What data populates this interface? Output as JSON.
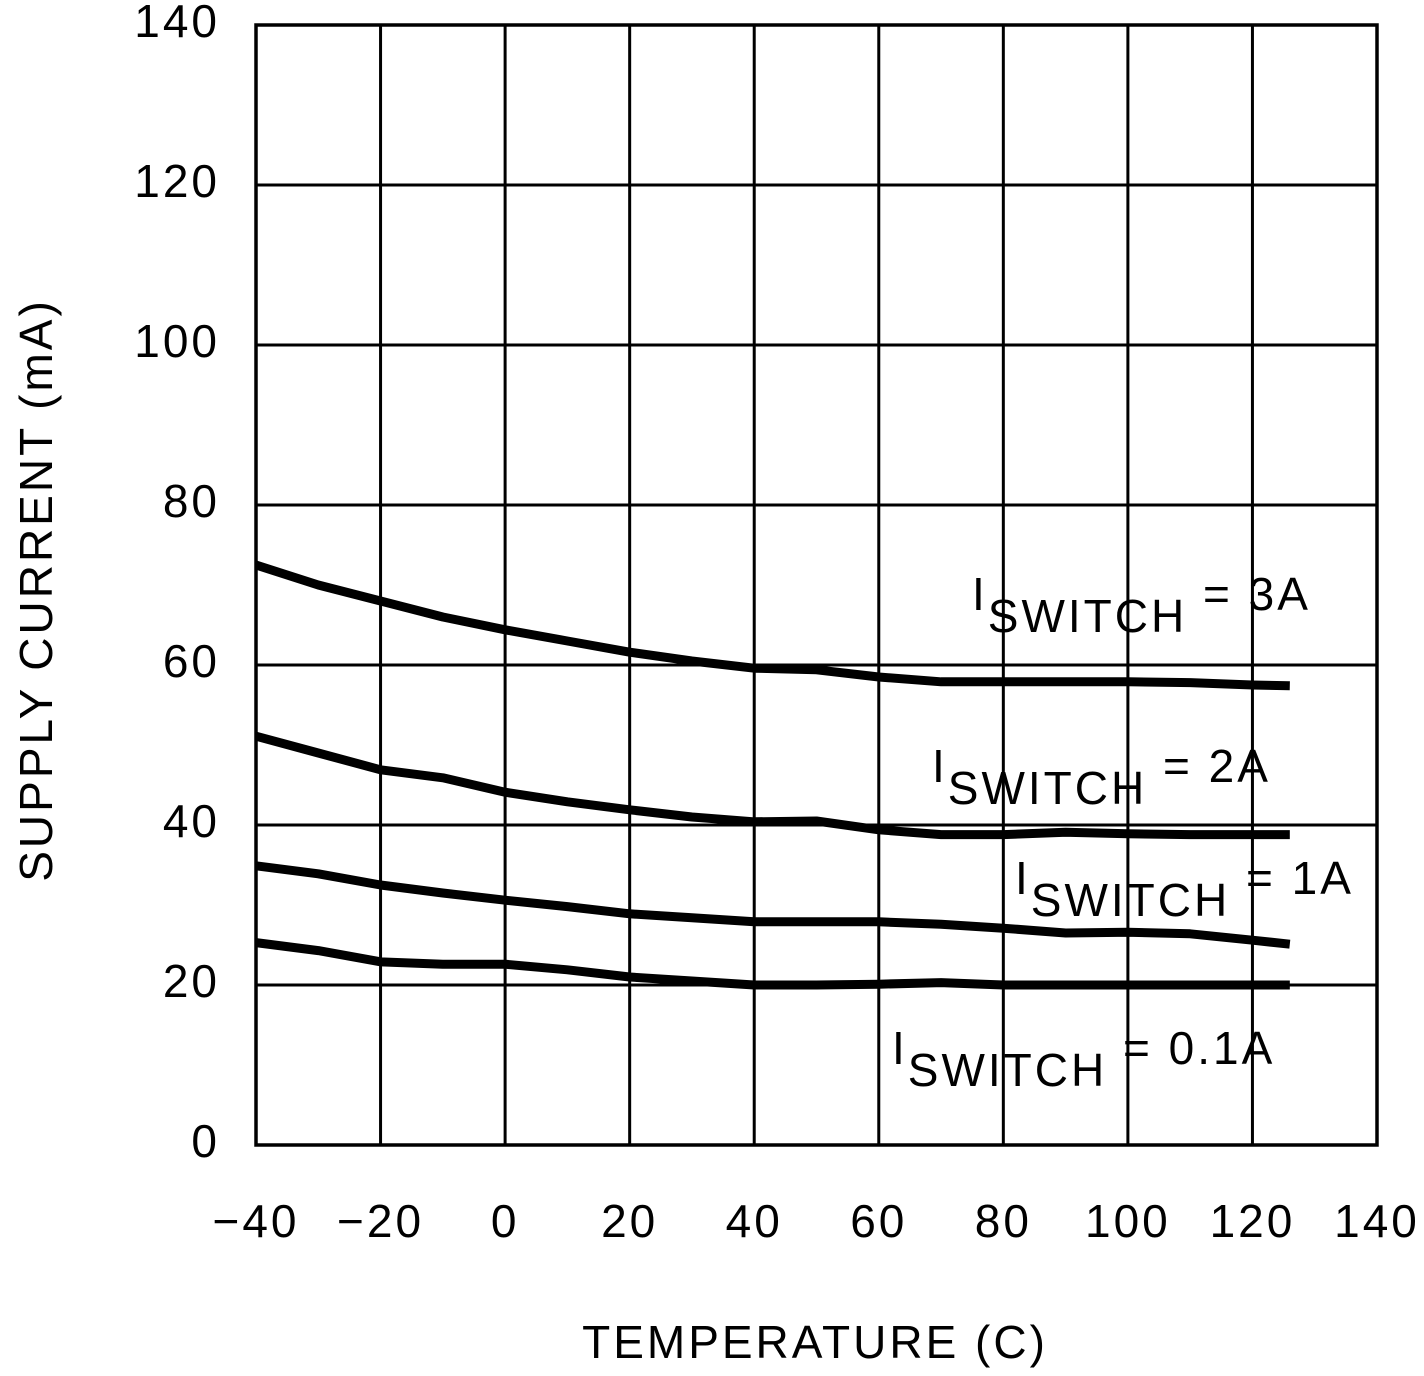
{
  "chart_data": {
    "type": "line",
    "xlabel": "TEMPERATURE (C)",
    "ylabel": "SUPPLY CURRENT (mA)",
    "x": [
      -40,
      -30,
      -20,
      -10,
      0,
      10,
      20,
      30,
      40,
      50,
      60,
      70,
      80,
      90,
      100,
      110,
      120,
      126
    ],
    "series": [
      {
        "label": {
          "base": "I",
          "sub": "SWITCH",
          "text": " = 3A"
        },
        "color": "#000000",
        "values": [
          72.5,
          70,
          68,
          66,
          64.4,
          63,
          61.6,
          60.5,
          59.6,
          59.4,
          58.5,
          57.9,
          57.9,
          57.9,
          57.9,
          57.8,
          57.5,
          57.4
        ]
      },
      {
        "label": {
          "base": "I",
          "sub": "SWITCH",
          "text": " = 2A"
        },
        "color": "#000000",
        "values": [
          51.1,
          49,
          46.9,
          45.9,
          44.1,
          42.9,
          41.9,
          41,
          40.4,
          40.5,
          39.4,
          38.8,
          38.8,
          39.1,
          38.9,
          38.8,
          38.8,
          38.8
        ]
      },
      {
        "label": {
          "base": "I",
          "sub": "SWITCH",
          "text": " = 1A"
        },
        "color": "#000000",
        "values": [
          34.9,
          33.9,
          32.5,
          31.5,
          30.6,
          29.8,
          28.9,
          28.4,
          27.9,
          27.9,
          27.9,
          27.6,
          27.1,
          26.5,
          26.6,
          26.4,
          25.6,
          25.1
        ]
      },
      {
        "label": {
          "base": "I",
          "sub": "SWITCH",
          "text": " = 0.1A"
        },
        "color": "#000000",
        "values": [
          25.3,
          24.3,
          22.9,
          22.6,
          22.6,
          21.9,
          21,
          20.5,
          20,
          20,
          20.1,
          20.3,
          20,
          20,
          20,
          20,
          20,
          20
        ]
      }
    ],
    "xlim": [
      -40,
      140
    ],
    "xticks": [
      {
        "value": -40,
        "label": "−40"
      },
      {
        "value": -20,
        "label": "−20"
      },
      0,
      20,
      40,
      60,
      80,
      100,
      120,
      140
    ],
    "ylim": [
      0,
      140
    ],
    "yticks": [
      0,
      20,
      40,
      60,
      80,
      100,
      120,
      140
    ],
    "grid": true
  }
}
